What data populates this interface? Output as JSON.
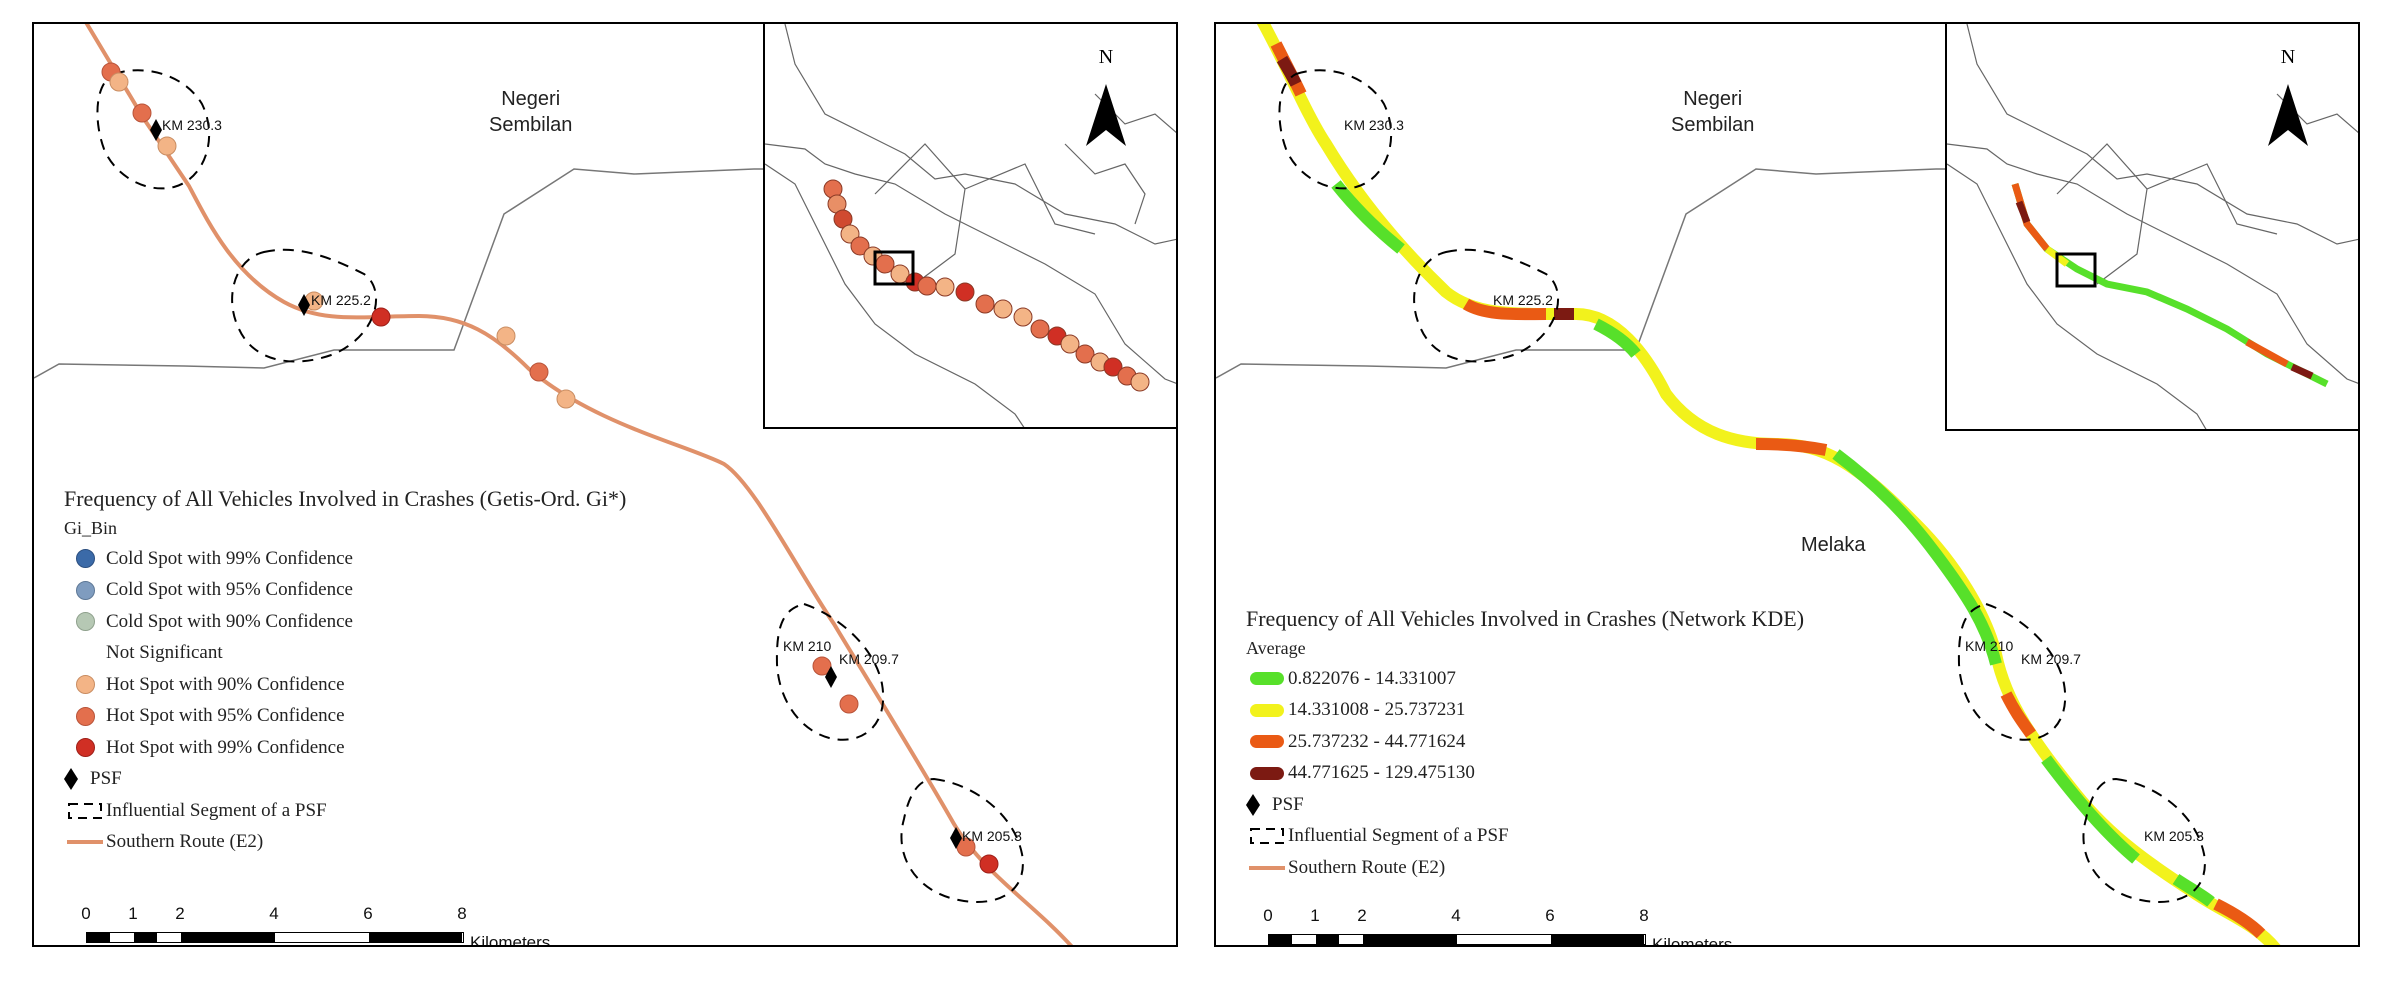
{
  "left_panel": {
    "region_label": [
      "Negeri",
      "Sembilan"
    ],
    "north_label": "N",
    "km_labels": [
      "KM 230.3",
      "KM 225.2",
      "KM 210",
      "KM 209.7",
      "KM 205.3"
    ],
    "legend": {
      "title": "Frequency of All Vehicles Involved in Crashes (Getis-Ord. Gi*)",
      "subtitle": "Gi_Bin",
      "items": [
        {
          "label": "Cold Spot with 99% Confidence",
          "color": "#3b6aa8"
        },
        {
          "label": "Cold Spot with 95% Confidence",
          "color": "#7f9cbf"
        },
        {
          "label": "Cold Spot with 90% Confidence",
          "color": "#b6c8b4"
        },
        {
          "label": "Not Significant",
          "color": "none"
        },
        {
          "label": "Hot Spot with 90% Confidence",
          "color": "#f3b486"
        },
        {
          "label": "Hot Spot with 95% Confidence",
          "color": "#e36f4d"
        },
        {
          "label": "Hot Spot with 99% Confidence",
          "color": "#d02f24"
        },
        {
          "label": "PSF",
          "icon": "diamond-icon"
        },
        {
          "label": "Influential Segment of a PSF",
          "icon": "dashed-outline-icon"
        },
        {
          "label": "Southern Route (E2)",
          "color": "#e0916a"
        }
      ]
    },
    "scale": {
      "ticks": [
        "0",
        "1",
        "2",
        "4",
        "6",
        "8"
      ],
      "unit": "Kilometers"
    }
  },
  "right_panel": {
    "region_label": [
      "Negeri",
      "Sembilan"
    ],
    "region_label_2": "Melaka",
    "north_label": "N",
    "km_labels": [
      "KM 230.3",
      "KM 225.2",
      "KM 210",
      "KM 209.7",
      "KM 205.3"
    ],
    "legend": {
      "title": "Frequency of All Vehicles Involved in Crashes (Network KDE)",
      "subtitle": "Average",
      "items": [
        {
          "label": "0.822076 - 14.331007",
          "color": "#57e02a"
        },
        {
          "label": "14.331008 - 25.737231",
          "color": "#f2f21c"
        },
        {
          "label": "25.737232 - 44.771624",
          "color": "#ea5a14"
        },
        {
          "label": "44.771625 - 129.475130",
          "color": "#7c1a12"
        },
        {
          "label": "PSF",
          "icon": "diamond-icon"
        },
        {
          "label": "Influential Segment of a PSF",
          "icon": "dashed-outline-icon"
        },
        {
          "label": "Southern Route (E2)",
          "color": "#e0916a"
        }
      ]
    },
    "scale": {
      "ticks": [
        "0",
        "1",
        "2",
        "4",
        "6",
        "8"
      ],
      "unit": "Kilometers"
    }
  }
}
